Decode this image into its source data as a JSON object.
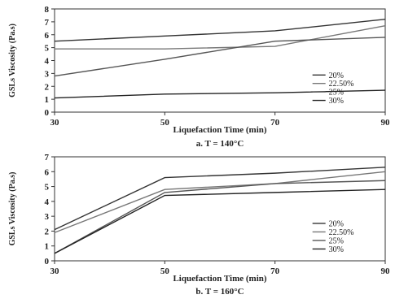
{
  "chart_data": [
    {
      "type": "line",
      "caption": "a. T = 140°C",
      "xlabel": "Liquefaction Time (min)",
      "ylabel": "GSLs Viscosity (Pa.s)",
      "x": [
        30,
        50,
        70,
        90
      ],
      "xlim": [
        30,
        90
      ],
      "ylim": [
        0,
        8
      ],
      "yticks": [
        0,
        1,
        2,
        3,
        4,
        5,
        6,
        7,
        8
      ],
      "xticks": [
        30,
        50,
        70,
        90
      ],
      "grid": false,
      "legend_position": "bottom-right",
      "series": [
        {
          "name": "20%",
          "values": [
            5.5,
            5.9,
            6.3,
            7.2
          ],
          "color": "#333333"
        },
        {
          "name": "22.50%",
          "values": [
            4.9,
            4.9,
            5.1,
            6.7
          ],
          "color": "#777777"
        },
        {
          "name": "25%",
          "values": [
            2.8,
            4.1,
            5.5,
            5.8
          ],
          "color": "#555555"
        },
        {
          "name": "30%",
          "values": [
            1.1,
            1.4,
            1.5,
            1.7
          ],
          "color": "#222222"
        }
      ]
    },
    {
      "type": "line",
      "caption": "b. T = 160°C",
      "xlabel": "Liquefaction Time (min)",
      "ylabel": "GSLs Viscosity (Pa.s)",
      "x": [
        30,
        50,
        70,
        90
      ],
      "xlim": [
        30,
        90
      ],
      "ylim": [
        0,
        7
      ],
      "yticks": [
        0,
        1,
        2,
        3,
        4,
        5,
        6,
        7
      ],
      "xticks": [
        30,
        50,
        70,
        90
      ],
      "grid": false,
      "legend_position": "bottom-right",
      "series": [
        {
          "name": "20%",
          "values": [
            2.1,
            5.6,
            5.9,
            6.3
          ],
          "color": "#333333"
        },
        {
          "name": "22.50%",
          "values": [
            1.9,
            4.8,
            5.2,
            6.0
          ],
          "color": "#777777"
        },
        {
          "name": "25%",
          "values": [
            0.5,
            4.6,
            5.2,
            5.4
          ],
          "color": "#555555"
        },
        {
          "name": "30%",
          "values": [
            0.5,
            4.4,
            4.6,
            4.8
          ],
          "color": "#222222"
        }
      ]
    }
  ]
}
